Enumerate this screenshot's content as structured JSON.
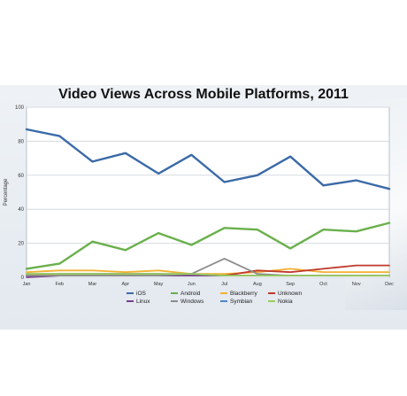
{
  "chart_data": {
    "type": "line",
    "title": "Video Views Across Mobile Platforms, 2011",
    "xlabel": "",
    "ylabel": "Percentage",
    "categories": [
      "Jan",
      "Feb",
      "Mar",
      "Apr",
      "May",
      "Jun",
      "Jul",
      "Aug",
      "Sep",
      "Oct",
      "Nov",
      "Dec"
    ],
    "ylim": [
      0,
      100
    ],
    "yticks": [
      0,
      20,
      40,
      60,
      80,
      100
    ],
    "grid": true,
    "legend_position": "bottom",
    "series": [
      {
        "name": "iOS",
        "color": "#3b6aa8",
        "values": [
          87,
          83,
          68,
          73,
          61,
          72,
          56,
          60,
          71,
          54,
          57,
          52
        ]
      },
      {
        "name": "Android",
        "color": "#6ab04c",
        "values": [
          5,
          8,
          21,
          16,
          26,
          19,
          29,
          28,
          17,
          28,
          27,
          32
        ]
      },
      {
        "name": "Blackberry",
        "color": "#f2b134",
        "values": [
          3,
          4,
          4,
          3,
          4,
          2,
          2,
          3,
          5,
          3,
          3,
          3
        ]
      },
      {
        "name": "Unknown",
        "color": "#c0392b",
        "values": [
          1,
          2,
          2,
          2,
          2,
          1,
          1,
          4,
          3,
          5,
          7,
          7
        ]
      },
      {
        "name": "Linux",
        "color": "#7a3f8f",
        "values": [
          0,
          1,
          1,
          1,
          1,
          1,
          1,
          1,
          1,
          1,
          1,
          1
        ]
      },
      {
        "name": "Windows",
        "color": "#8c8c8c",
        "values": [
          1,
          1,
          1,
          1,
          1,
          2,
          11,
          2,
          1,
          1,
          1,
          1
        ]
      },
      {
        "name": "Symbian",
        "color": "#4f86c6",
        "values": [
          2,
          2,
          2,
          2,
          2,
          2,
          1,
          1,
          1,
          1,
          1,
          1
        ]
      },
      {
        "name": "Nokia",
        "color": "#9acd5a",
        "values": [
          2,
          2,
          2,
          2,
          2,
          2,
          1,
          1,
          1,
          1,
          1,
          1
        ]
      }
    ]
  }
}
